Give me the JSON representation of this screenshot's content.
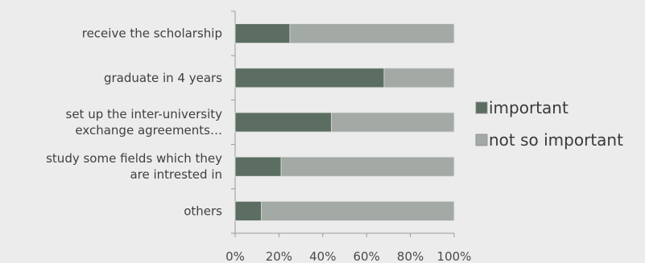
{
  "chart_data": {
    "type": "bar",
    "orientation": "horizontal",
    "stacked": "percent",
    "categories": [
      [
        "receive the scholarship"
      ],
      [
        "graduate in 4 years"
      ],
      [
        "set up the inter-university",
        "exchange agreements…"
      ],
      [
        "study some fields which they",
        "are intrested in"
      ],
      [
        "others"
      ]
    ],
    "series": [
      {
        "name": "important",
        "values": [
          25,
          68,
          44,
          21,
          12
        ],
        "color": "#5b6e61"
      },
      {
        "name": "not so important",
        "values": [
          75,
          32,
          56,
          79,
          88
        ],
        "color": "#a3a9a5"
      }
    ],
    "xlim": [
      0,
      100
    ],
    "x_ticks": [
      "0%",
      "20%",
      "40%",
      "60%",
      "80%",
      "100%"
    ],
    "grid": false,
    "legend_position": "right"
  }
}
